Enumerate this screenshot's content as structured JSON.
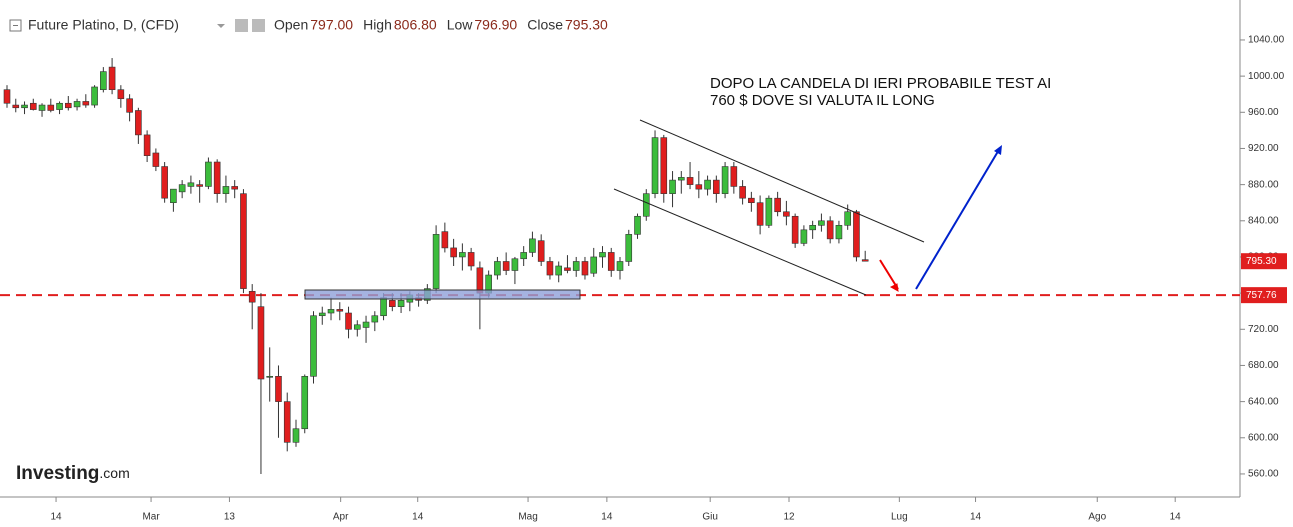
{
  "chart_data": {
    "type": "candlestick",
    "title": "Future Platino, D, (CFD)",
    "header_stats": [
      {
        "label": "Open",
        "value": "797.00"
      },
      {
        "label": "High",
        "value": "806.80"
      },
      {
        "label": "Low",
        "value": "796.90"
      },
      {
        "label": "Close",
        "value": "795.30"
      }
    ],
    "annotations": [
      "DOPO LA CANDELA DI IERI PROBABILE TEST AI",
      "760 $ DOVE SI VALUTA IL LONG"
    ],
    "watermark": [
      "Investing",
      ".com"
    ],
    "up_color": "#3cbc3c",
    "down_color": "#e01e1e",
    "x": [
      0,
      1,
      2,
      3,
      4,
      5,
      6,
      7,
      8,
      9,
      10,
      11,
      12,
      13,
      14,
      15,
      16,
      17,
      18,
      19,
      20,
      21,
      22,
      23,
      24,
      25,
      26,
      27,
      28,
      29,
      30,
      31,
      32,
      33,
      34,
      35,
      36,
      37,
      38,
      39,
      40,
      41,
      42,
      43,
      44,
      45,
      46,
      47,
      48,
      49,
      50,
      51,
      52,
      53,
      54,
      55,
      56,
      57,
      58,
      59,
      60,
      61,
      62,
      63,
      64,
      65,
      66,
      67,
      68,
      69,
      70,
      71,
      72,
      73,
      74,
      75,
      76,
      77,
      78,
      79,
      80,
      81,
      82,
      83,
      84,
      85,
      86,
      87,
      88,
      89,
      90,
      91,
      92,
      93,
      94,
      95,
      96,
      97,
      98
    ],
    "open": [
      985,
      968,
      965,
      970,
      962,
      968,
      963,
      970,
      966,
      972,
      968,
      985,
      1010,
      985,
      975,
      962,
      935,
      915,
      900,
      860,
      872,
      878,
      880,
      878,
      905,
      870,
      878,
      870,
      762,
      745,
      668,
      668,
      640,
      595,
      610,
      668,
      735,
      738,
      742,
      738,
      720,
      722,
      728,
      735,
      752,
      745,
      750,
      755,
      752,
      765,
      828,
      810,
      800,
      805,
      788,
      760,
      780,
      795,
      785,
      798,
      805,
      818,
      795,
      780,
      788,
      785,
      795,
      782,
      800,
      805,
      785,
      795,
      825,
      845,
      870,
      932,
      870,
      885,
      888,
      880,
      875,
      885,
      870,
      900,
      878,
      865,
      860,
      835,
      865,
      850,
      845,
      815,
      830,
      835,
      840,
      820,
      835,
      850,
      797
    ],
    "high": [
      990,
      975,
      972,
      975,
      970,
      975,
      972,
      978,
      975,
      980,
      990,
      1010,
      1020,
      990,
      980,
      965,
      940,
      920,
      905,
      875,
      885,
      890,
      885,
      910,
      908,
      890,
      885,
      875,
      770,
      760,
      700,
      680,
      650,
      620,
      670,
      740,
      745,
      755,
      750,
      745,
      730,
      735,
      740,
      760,
      760,
      760,
      762,
      760,
      770,
      835,
      838,
      820,
      815,
      810,
      795,
      785,
      800,
      805,
      800,
      812,
      828,
      825,
      800,
      795,
      802,
      800,
      800,
      810,
      812,
      810,
      800,
      830,
      848,
      875,
      940,
      935,
      895,
      895,
      905,
      895,
      890,
      890,
      905,
      905,
      885,
      872,
      868,
      868,
      872,
      862,
      848,
      835,
      840,
      848,
      845,
      840,
      858,
      852,
      806.8
    ],
    "low": [
      965,
      960,
      958,
      962,
      955,
      960,
      958,
      962,
      962,
      965,
      965,
      982,
      980,
      965,
      950,
      925,
      905,
      895,
      860,
      850,
      865,
      870,
      860,
      875,
      860,
      860,
      865,
      760,
      720,
      560,
      640,
      600,
      585,
      590,
      605,
      660,
      725,
      730,
      730,
      710,
      712,
      705,
      718,
      730,
      740,
      738,
      740,
      745,
      748,
      760,
      805,
      790,
      785,
      785,
      720,
      755,
      775,
      780,
      770,
      790,
      800,
      790,
      775,
      772,
      782,
      778,
      775,
      778,
      788,
      778,
      775,
      790,
      820,
      840,
      865,
      860,
      855,
      870,
      875,
      865,
      868,
      860,
      865,
      870,
      858,
      850,
      825,
      832,
      845,
      835,
      810,
      812,
      820,
      828,
      815,
      815,
      830,
      795,
      796.9
    ],
    "close": [
      970,
      965,
      968,
      963,
      968,
      962,
      970,
      965,
      972,
      968,
      988,
      1005,
      985,
      975,
      960,
      935,
      912,
      900,
      865,
      875,
      880,
      882,
      878,
      905,
      870,
      878,
      875,
      765,
      750,
      665,
      668,
      640,
      595,
      610,
      668,
      735,
      738,
      742,
      740,
      720,
      725,
      728,
      735,
      755,
      745,
      752,
      758,
      752,
      765,
      825,
      810,
      800,
      805,
      790,
      760,
      780,
      795,
      785,
      798,
      805,
      820,
      795,
      780,
      790,
      785,
      795,
      780,
      800,
      805,
      785,
      795,
      825,
      845,
      870,
      932,
      870,
      885,
      888,
      880,
      875,
      885,
      870,
      900,
      878,
      865,
      860,
      835,
      865,
      850,
      845,
      815,
      830,
      835,
      840,
      820,
      835,
      850,
      800,
      795.3
    ],
    "xlim": [
      -0.8,
      140.8
    ],
    "xticks": [
      {
        "value": 5.6,
        "label": "14"
      },
      {
        "value": 16.45,
        "label": "Mar"
      },
      {
        "value": 25.4,
        "label": "13"
      },
      {
        "value": 38.1,
        "label": "Apr"
      },
      {
        "value": 46.9,
        "label": "14"
      },
      {
        "value": 59.5,
        "label": "Mag"
      },
      {
        "value": 68.5,
        "label": "14"
      },
      {
        "value": 80.3,
        "label": "Giu"
      },
      {
        "value": 89.3,
        "label": "12"
      },
      {
        "value": 101.9,
        "label": "Lug"
      },
      {
        "value": 110.6,
        "label": "14"
      },
      {
        "value": 124.5,
        "label": "Ago"
      },
      {
        "value": 133.4,
        "label": "14"
      }
    ],
    "ylim": [
      534.5,
      1084.2
    ],
    "yticks": [
      {
        "value": 560,
        "label": "560.00"
      },
      {
        "value": 600,
        "label": "600.00"
      },
      {
        "value": 640,
        "label": "640.00"
      },
      {
        "value": 680,
        "label": "680.00"
      },
      {
        "value": 720,
        "label": "720.00"
      },
      {
        "value": 760,
        "label": "760.00"
      },
      {
        "value": 800,
        "label": "800.00"
      },
      {
        "value": 840,
        "label": "840.00"
      },
      {
        "value": 880,
        "label": "880.00"
      },
      {
        "value": 920,
        "label": "920.00"
      },
      {
        "value": 960,
        "label": "960.00"
      },
      {
        "value": 1000,
        "label": "1000.00"
      },
      {
        "value": 1040,
        "label": "1040.00"
      }
    ],
    "last_price": {
      "value": 795.3,
      "label": "795.30"
    },
    "level": {
      "value": 757.76,
      "label": "757.76"
    }
  }
}
